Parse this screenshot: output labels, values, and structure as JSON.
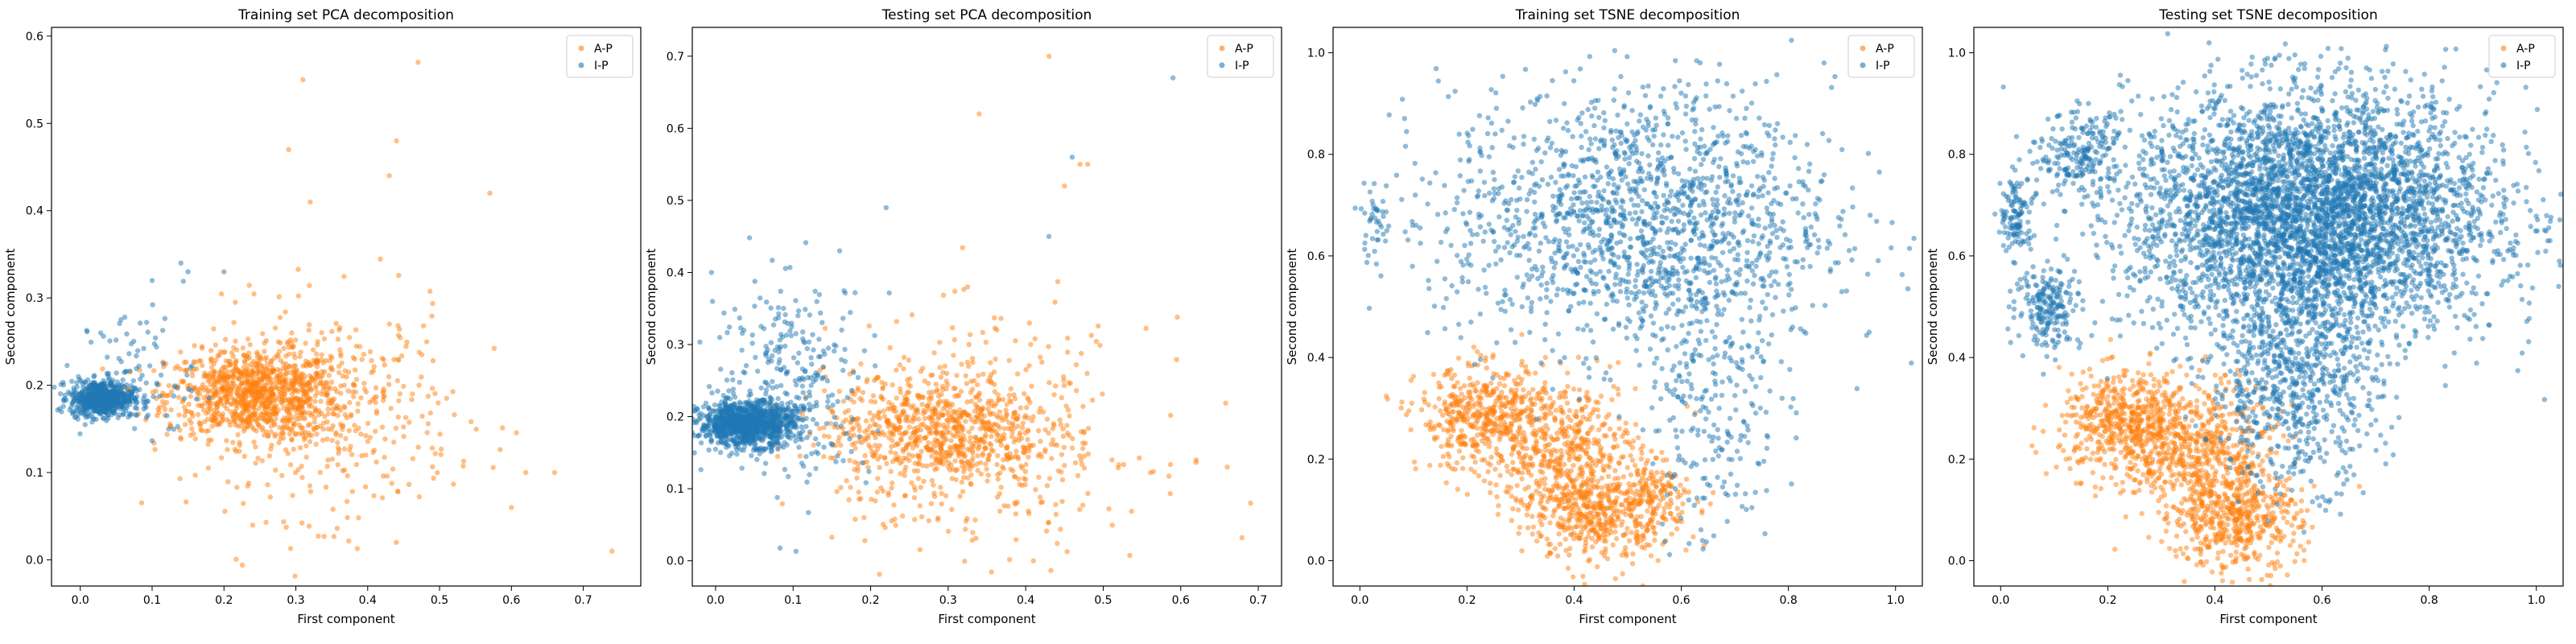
{
  "figure": {
    "background": "#ffffff",
    "series_colors": {
      "A-P": "#ff7f0e",
      "I-P": "#1f77b4"
    }
  },
  "chart_data": [
    {
      "type": "scatter",
      "title": "Training set PCA decomposition",
      "xlabel": "First component",
      "ylabel": "Second component",
      "xlim": [
        -0.04,
        0.78
      ],
      "ylim": [
        -0.03,
        0.61
      ],
      "xticks": [
        0.0,
        0.1,
        0.2,
        0.3,
        0.4,
        0.5,
        0.6,
        0.7
      ],
      "yticks": [
        0.0,
        0.1,
        0.2,
        0.3,
        0.4,
        0.5,
        0.6
      ],
      "grid": false,
      "legend": "top-right",
      "series": [
        {
          "name": "A-P",
          "color": "#ff7f0e",
          "clusters": [
            {
              "cx": 0.24,
              "cy": 0.19,
              "sx": 0.06,
              "sy": 0.025,
              "n": 900
            },
            {
              "cx": 0.34,
              "cy": 0.17,
              "sx": 0.09,
              "sy": 0.06,
              "n": 450
            }
          ],
          "outliers": [
            [
              0.47,
              0.57
            ],
            [
              0.31,
              0.55
            ],
            [
              0.44,
              0.48
            ],
            [
              0.29,
              0.47
            ],
            [
              0.43,
              0.44
            ],
            [
              0.57,
              0.42
            ],
            [
              0.74,
              0.01
            ],
            [
              0.62,
              0.1
            ],
            [
              0.6,
              0.06
            ],
            [
              0.66,
              0.1
            ],
            [
              0.32,
              0.41
            ]
          ]
        },
        {
          "name": "I-P",
          "color": "#1f77b4",
          "clusters": [
            {
              "cx": 0.03,
              "cy": 0.185,
              "sx": 0.022,
              "sy": 0.01,
              "n": 650
            },
            {
              "cx": 0.08,
              "cy": 0.21,
              "sx": 0.04,
              "sy": 0.04,
              "n": 90
            }
          ],
          "outliers": [
            [
              0.14,
              0.34
            ],
            [
              0.15,
              0.33
            ],
            [
              0.1,
              0.32
            ],
            [
              0.2,
              0.33
            ]
          ]
        }
      ]
    },
    {
      "type": "scatter",
      "title": "Testing set PCA decomposition",
      "xlabel": "First component",
      "ylabel": "Second component",
      "xlim": [
        -0.03,
        0.73
      ],
      "ylim": [
        -0.035,
        0.74
      ],
      "xticks": [
        0.0,
        0.1,
        0.2,
        0.3,
        0.4,
        0.5,
        0.6,
        0.7
      ],
      "yticks": [
        0.0,
        0.1,
        0.2,
        0.3,
        0.4,
        0.5,
        0.6,
        0.7
      ],
      "grid": false,
      "legend": "top-right",
      "series": [
        {
          "name": "A-P",
          "color": "#ff7f0e",
          "clusters": [
            {
              "cx": 0.28,
              "cy": 0.18,
              "sx": 0.07,
              "sy": 0.04,
              "n": 700
            },
            {
              "cx": 0.36,
              "cy": 0.17,
              "sx": 0.1,
              "sy": 0.08,
              "n": 350
            }
          ],
          "outliers": [
            [
              0.43,
              0.7
            ],
            [
              0.34,
              0.62
            ],
            [
              0.48,
              0.55
            ],
            [
              0.45,
              0.52
            ],
            [
              0.47,
              0.55
            ],
            [
              0.62,
              0.14
            ],
            [
              0.66,
              0.13
            ],
            [
              0.69,
              0.08
            ],
            [
              0.41,
              0.0
            ]
          ]
        },
        {
          "name": "I-P",
          "color": "#1f77b4",
          "clusters": [
            {
              "cx": 0.04,
              "cy": 0.19,
              "sx": 0.03,
              "sy": 0.015,
              "n": 1100
            },
            {
              "cx": 0.1,
              "cy": 0.25,
              "sx": 0.05,
              "sy": 0.07,
              "n": 300
            }
          ],
          "outliers": [
            [
              0.59,
              0.67
            ],
            [
              0.46,
              0.56
            ],
            [
              0.43,
              0.45
            ],
            [
              0.22,
              0.49
            ],
            [
              0.16,
              0.43
            ]
          ]
        }
      ]
    },
    {
      "type": "scatter",
      "title": "Training set TSNE decomposition",
      "xlabel": "First component",
      "ylabel": "Second component",
      "xlim": [
        -0.05,
        1.05
      ],
      "ylim": [
        -0.05,
        1.05
      ],
      "xticks": [
        0.0,
        0.2,
        0.4,
        0.6,
        0.8,
        1.0
      ],
      "yticks": [
        0.0,
        0.2,
        0.4,
        0.6,
        0.8,
        1.0
      ],
      "grid": false,
      "legend": "top-right",
      "series": [
        {
          "name": "A-P",
          "color": "#ff7f0e",
          "clusters": [
            {
              "cx": 0.23,
              "cy": 0.28,
              "sx": 0.06,
              "sy": 0.05,
              "n": 450
            },
            {
              "cx": 0.38,
              "cy": 0.22,
              "sx": 0.07,
              "sy": 0.07,
              "n": 500
            },
            {
              "cx": 0.44,
              "cy": 0.09,
              "sx": 0.06,
              "sy": 0.05,
              "n": 400
            },
            {
              "cx": 0.55,
              "cy": 0.12,
              "sx": 0.04,
              "sy": 0.04,
              "n": 150
            }
          ],
          "outliers": []
        },
        {
          "name": "I-P",
          "color": "#1f77b4",
          "clusters": [
            {
              "cx": 0.52,
              "cy": 0.67,
              "sx": 0.18,
              "sy": 0.13,
              "n": 1600
            },
            {
              "cx": 0.66,
              "cy": 0.33,
              "sx": 0.06,
              "sy": 0.15,
              "n": 250
            },
            {
              "cx": 0.03,
              "cy": 0.67,
              "sx": 0.015,
              "sy": 0.035,
              "n": 40
            }
          ],
          "outliers": []
        }
      ]
    },
    {
      "type": "scatter",
      "title": "Testing set TSNE decomposition",
      "xlabel": "First component",
      "ylabel": "Second component",
      "xlim": [
        -0.05,
        1.05
      ],
      "ylim": [
        -0.05,
        1.05
      ],
      "xticks": [
        0.0,
        0.2,
        0.4,
        0.6,
        0.8,
        1.0
      ],
      "yticks": [
        0.0,
        0.2,
        0.4,
        0.6,
        0.8,
        1.0
      ],
      "grid": false,
      "legend": "top-right",
      "series": [
        {
          "name": "A-P",
          "color": "#ff7f0e",
          "clusters": [
            {
              "cx": 0.23,
              "cy": 0.27,
              "sx": 0.06,
              "sy": 0.05,
              "n": 500
            },
            {
              "cx": 0.37,
              "cy": 0.21,
              "sx": 0.07,
              "sy": 0.07,
              "n": 600
            },
            {
              "cx": 0.44,
              "cy": 0.08,
              "sx": 0.06,
              "sy": 0.05,
              "n": 450
            }
          ],
          "outliers": []
        },
        {
          "name": "I-P",
          "color": "#1f77b4",
          "clusters": [
            {
              "cx": 0.58,
              "cy": 0.68,
              "sx": 0.17,
              "sy": 0.12,
              "n": 4500
            },
            {
              "cx": 0.55,
              "cy": 0.35,
              "sx": 0.08,
              "sy": 0.1,
              "n": 700
            },
            {
              "cx": 0.09,
              "cy": 0.5,
              "sx": 0.03,
              "sy": 0.04,
              "n": 200
            },
            {
              "cx": 0.03,
              "cy": 0.68,
              "sx": 0.015,
              "sy": 0.04,
              "n": 120
            },
            {
              "cx": 0.15,
              "cy": 0.8,
              "sx": 0.04,
              "sy": 0.04,
              "n": 200
            }
          ],
          "outliers": []
        }
      ]
    }
  ]
}
